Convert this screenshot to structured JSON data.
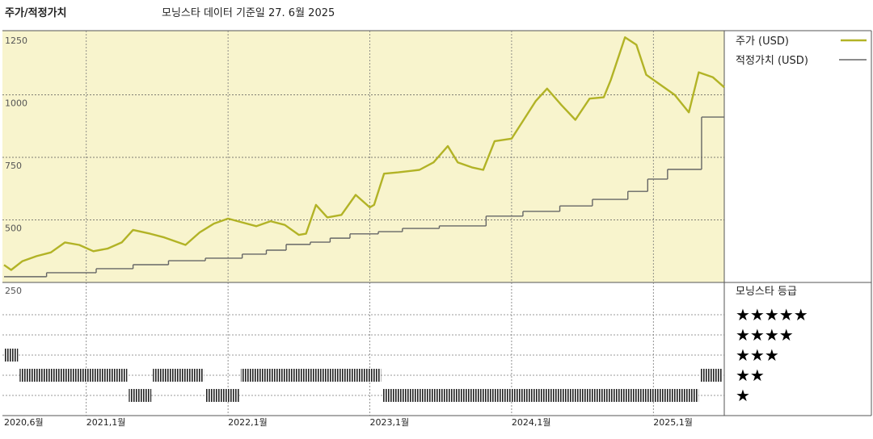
{
  "header": {
    "title": "주가/적정가치",
    "subtitle": "모닝스타 데이터 기준일 27. 6월 2025"
  },
  "chart_data": {
    "type": "line",
    "xlim": [
      2020.42,
      2025.5
    ],
    "xticks": [
      {
        "value": 2020.42,
        "label": "2020,6월"
      },
      {
        "value": 2021.0,
        "label": "2021,1월"
      },
      {
        "value": 2022.0,
        "label": "2022,1월"
      },
      {
        "value": 2023.0,
        "label": "2023,1월"
      },
      {
        "value": 2024.0,
        "label": "2024,1월"
      },
      {
        "value": 2025.0,
        "label": "2025,1월"
      }
    ],
    "ylim": [
      250,
      1250
    ],
    "yticks": [
      250,
      500,
      750,
      1000,
      1250
    ],
    "grid": true,
    "series": [
      {
        "name": "주가 (USD)",
        "color": "#b2b326",
        "x": [
          2020.42,
          2020.47,
          2020.55,
          2020.65,
          2020.75,
          2020.85,
          2020.95,
          2021.05,
          2021.15,
          2021.25,
          2021.33,
          2021.45,
          2021.55,
          2021.7,
          2021.8,
          2021.9,
          2022.0,
          2022.1,
          2022.2,
          2022.3,
          2022.4,
          2022.5,
          2022.55,
          2022.62,
          2022.7,
          2022.8,
          2022.9,
          2023.0,
          2023.03,
          2023.1,
          2023.2,
          2023.35,
          2023.45,
          2023.55,
          2023.62,
          2023.72,
          2023.8,
          2023.88,
          2024.0,
          2024.08,
          2024.17,
          2024.25,
          2024.35,
          2024.45,
          2024.55,
          2024.65,
          2024.7,
          2024.8,
          2024.88,
          2024.95,
          2025.05,
          2025.15,
          2025.25,
          2025.32,
          2025.42,
          2025.5
        ],
        "values": [
          320,
          300,
          335,
          355,
          370,
          410,
          400,
          375,
          385,
          410,
          460,
          445,
          430,
          400,
          450,
          485,
          505,
          490,
          475,
          495,
          480,
          440,
          445,
          560,
          510,
          520,
          600,
          550,
          560,
          685,
          690,
          700,
          730,
          795,
          730,
          710,
          700,
          815,
          825,
          895,
          975,
          1025,
          960,
          900,
          985,
          990,
          1060,
          1230,
          1200,
          1080,
          1040,
          1000,
          930,
          1090,
          1070,
          1030
        ]
      },
      {
        "name": "적정가치 (USD)",
        "color": "#666666",
        "step": true,
        "x": [
          2020.42,
          2020.72,
          2021.07,
          2021.33,
          2021.58,
          2021.84,
          2022.1,
          2022.27,
          2022.41,
          2022.58,
          2022.72,
          2022.86,
          2023.06,
          2023.23,
          2023.49,
          2023.82,
          2024.08,
          2024.34,
          2024.57,
          2024.82,
          2024.96,
          2025.1,
          2025.34
        ],
        "values": [
          273,
          289,
          305,
          321,
          337,
          347,
          363,
          379,
          402,
          411,
          427,
          444,
          453,
          466,
          476,
          515,
          534,
          556,
          582,
          614,
          663,
          702,
          911
        ]
      }
    ],
    "ratings": {
      "title": "모닝스타 등급",
      "labels": [
        "★★★★★",
        "★★★★",
        "★★★",
        "★★",
        "★"
      ],
      "x": [
        2020.42,
        2020.53,
        2021.3,
        2021.47,
        2021.84,
        2022.09,
        2023.09,
        2025.33
      ],
      "values": [
        3,
        2,
        1,
        2,
        1,
        2,
        1,
        2
      ]
    }
  }
}
